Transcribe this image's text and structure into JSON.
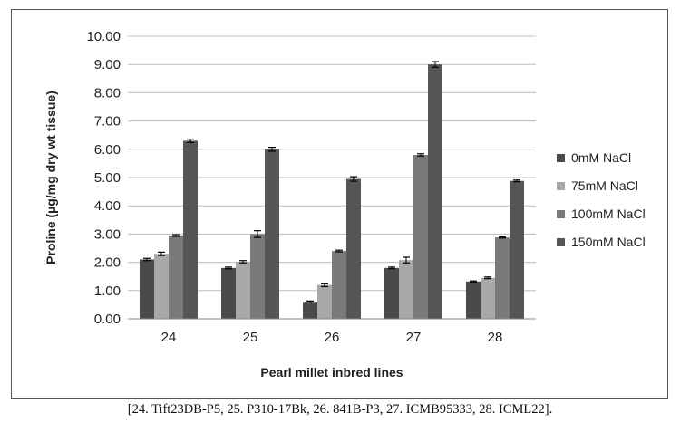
{
  "chart_data": {
    "type": "bar",
    "title": "",
    "xlabel": "Pearl millet inbred lines",
    "ylabel": "Proline (µg/mg dry wt tissue)",
    "ylim": [
      0,
      10
    ],
    "y_ticks": [
      "0.00",
      "1.00",
      "2.00",
      "3.00",
      "4.00",
      "5.00",
      "6.00",
      "7.00",
      "8.00",
      "9.00",
      "10.00"
    ],
    "categories": [
      "24",
      "25",
      "26",
      "27",
      "28"
    ],
    "grid": true,
    "legend_position": "right",
    "series": [
      {
        "name": "0mM NaCl",
        "color": "#4a4a4a",
        "values": [
          2.1,
          1.8,
          0.6,
          1.8,
          1.32
        ],
        "errors": [
          0.04,
          0.03,
          0.03,
          0.03,
          0.02
        ]
      },
      {
        "name": "75mM NaCl",
        "color": "#a8a8a8",
        "values": [
          2.3,
          2.02,
          1.2,
          2.08,
          1.45
        ],
        "errors": [
          0.06,
          0.04,
          0.06,
          0.1,
          0.03
        ]
      },
      {
        "name": "100mM NaCl",
        "color": "#7a7a7a",
        "values": [
          2.95,
          3.0,
          2.4,
          5.8,
          2.88
        ],
        "errors": [
          0.03,
          0.12,
          0.03,
          0.04,
          0.02
        ]
      },
      {
        "name": "150mM NaCl",
        "color": "#555555",
        "values": [
          6.3,
          6.0,
          4.95,
          9.0,
          4.88
        ],
        "errors": [
          0.06,
          0.07,
          0.08,
          0.1,
          0.03
        ]
      }
    ]
  },
  "caption": "[24. Tift23DB-P5, 25. P310-17Bk, 26. 841B-P3, 27. ICMB95333, 28. ICML22]."
}
